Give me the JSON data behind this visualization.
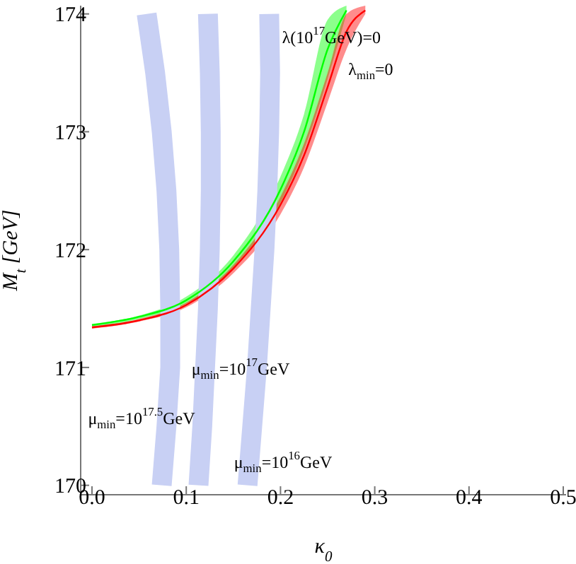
{
  "chart_data": {
    "type": "line",
    "xlabel": "κ$_{0}$",
    "ylabel": "M$_{t}$ [GeV]",
    "xlim": [
      -0.012,
      0.503
    ],
    "ylim": [
      169.92,
      174.07
    ],
    "xticks": [
      {
        "value": 0,
        "label": "0.0"
      },
      {
        "value": 0.1,
        "label": "0.1"
      },
      {
        "value": 0.2,
        "label": "0.2"
      },
      {
        "value": 0.3,
        "label": "0.3"
      },
      {
        "value": 0.4,
        "label": "0.4"
      },
      {
        "value": 0.5,
        "label": "0.5"
      }
    ],
    "yticks": [
      170,
      171,
      172,
      173,
      174
    ],
    "series": [
      {
        "color": "#c8d0f4",
        "x": [
          0.058,
          0.067,
          0.074,
          0.079,
          0.082,
          0.083,
          0.083,
          0.079,
          0.074
        ],
        "values": [
          174,
          173.5,
          173,
          172.5,
          172,
          171.5,
          171,
          170.5,
          170
        ]
      },
      {
        "color": "#c8d0f4",
        "x": [
          0.123,
          0.125,
          0.126,
          0.126,
          0.125,
          0.123,
          0.12,
          0.117,
          0.113
        ],
        "values": [
          174,
          173.5,
          173,
          172.5,
          172,
          171.5,
          171,
          170.5,
          170
        ]
      },
      {
        "color": "#c8d0f4",
        "x": [
          0.188,
          0.189,
          0.188,
          0.186,
          0.183,
          0.179,
          0.175,
          0.17,
          0.165
        ],
        "values": [
          174,
          173.5,
          173,
          172.5,
          172,
          171.5,
          171,
          170.5,
          170
        ]
      },
      {
        "color": "#00ff00",
        "x": [
          0,
          0.05,
          0.1,
          0.15,
          0.2,
          0.225,
          0.25,
          0.27
        ],
        "values": [
          171.36,
          171.43,
          171.57,
          171.9,
          172.51,
          173.0,
          173.7,
          174.03
        ],
        "lower": [
          171.34,
          171.41,
          171.54,
          171.85,
          172.4,
          172.85,
          173.45,
          174.0
        ],
        "upper": [
          171.37,
          171.44,
          171.6,
          171.95,
          172.62,
          173.15,
          173.95,
          174.07
        ]
      },
      {
        "color": "#ff0000",
        "x": [
          0,
          0.05,
          0.1,
          0.15,
          0.2,
          0.225,
          0.25,
          0.27,
          0.29
        ],
        "values": [
          171.34,
          171.4,
          171.53,
          171.84,
          172.38,
          172.8,
          173.38,
          173.85,
          174.03
        ],
        "lower": [
          171.33,
          171.39,
          171.51,
          171.8,
          172.3,
          172.7,
          173.25,
          173.7,
          174.0
        ],
        "upper": [
          171.35,
          171.41,
          171.55,
          171.87,
          172.45,
          172.9,
          173.5,
          174.0,
          174.07
        ]
      }
    ],
    "annotations": [
      {
        "text": "λ(10$^{17}$GeV)=0",
        "x": 0.254,
        "y": 173.79
      },
      "λ$_{min}$=0",
      "μ$_{min}$=10$^{17}$GeV",
      "μ$_{min}$=10$^{17.5}$GeV",
      "μ$_{min}$=10$^{16}$GeV"
    ]
  }
}
